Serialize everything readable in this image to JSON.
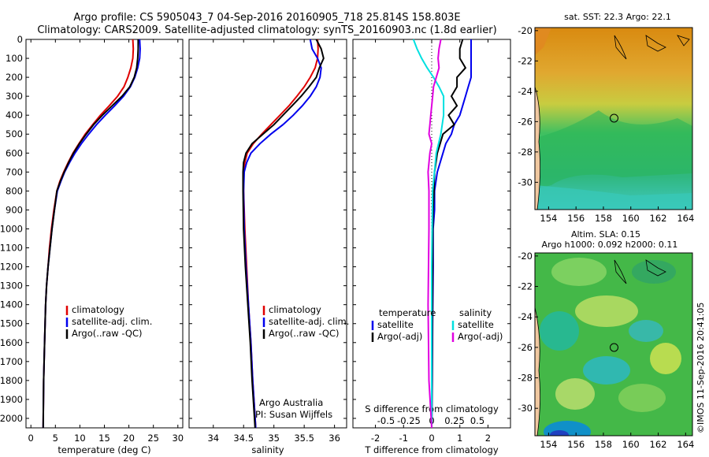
{
  "header": {
    "line1": "Argo profile: CS 5905043_7 04-Sep-2016 20160905_718 25.814S 158.803E",
    "line2": "Climatology: CARS2009. Satellite-adjusted climatology: synTS_20160903.nc (1.8d earlier)"
  },
  "side_label": "©IMOS 11-Sep-2016 20:41:05",
  "colors": {
    "climatology": "#e00000",
    "satellite": "#0000ee",
    "argo": "#000000",
    "sal_satellite": "#00e0e0",
    "sal_argo": "#e000e0"
  },
  "chart_data": [
    {
      "id": "temperature",
      "type": "line",
      "xlabel": "temperature (deg C)",
      "ylabel": "",
      "xlim": [
        -1,
        31
      ],
      "ylim": [
        2050,
        0
      ],
      "xticks": [
        0,
        5,
        10,
        15,
        20,
        25,
        30
      ],
      "yticks": [
        0,
        100,
        200,
        300,
        400,
        500,
        600,
        700,
        800,
        900,
        1000,
        1100,
        1200,
        1300,
        1400,
        1500,
        1600,
        1700,
        1800,
        1900,
        2000
      ],
      "legend": {
        "placement": "lower-center",
        "entries": [
          "climatology",
          "satellite-adj. clim.",
          "Argo(..raw -QC)"
        ]
      },
      "series": [
        {
          "name": "climatology",
          "color": "#e00000",
          "x": [
            20.8,
            20.9,
            20.8,
            20.4,
            19.8,
            19.0,
            17.7,
            16.0,
            14.2,
            12.6,
            11.1,
            9.8,
            8.6,
            7.6,
            6.7,
            5.9,
            5.3,
            4.7,
            4.2,
            3.8,
            3.5,
            3.2,
            3.0,
            2.8,
            2.6,
            2.5
          ],
          "y": [
            0,
            50,
            100,
            150,
            200,
            250,
            300,
            350,
            400,
            450,
            500,
            550,
            600,
            650,
            700,
            750,
            800,
            900,
            1000,
            1100,
            1200,
            1300,
            1400,
            1600,
            1800,
            2050
          ]
        },
        {
          "name": "satellite-adj. clim.",
          "color": "#0000ee",
          "x": [
            22.2,
            22.3,
            22.2,
            21.8,
            21.2,
            20.3,
            18.9,
            17.1,
            15.2,
            13.4,
            11.8,
            10.3,
            9.0,
            7.9,
            6.9,
            6.1,
            5.4,
            4.8,
            4.3,
            3.9,
            3.5,
            3.2,
            3.0,
            2.8,
            2.6,
            2.5
          ],
          "y": [
            0,
            50,
            100,
            150,
            200,
            250,
            300,
            350,
            400,
            450,
            500,
            550,
            600,
            650,
            700,
            750,
            800,
            900,
            1000,
            1100,
            1200,
            1300,
            1400,
            1600,
            1800,
            2050
          ]
        },
        {
          "name": "Argo(..raw -QC)",
          "color": "#000000",
          "x": [
            21.9,
            21.9,
            21.8,
            21.6,
            21.1,
            20.2,
            18.6,
            16.6,
            14.6,
            12.8,
            11.3,
            9.9,
            8.7,
            7.7,
            6.8,
            6.0,
            5.3,
            4.8,
            4.3,
            3.9,
            3.5,
            3.2,
            3.0,
            2.8,
            2.6,
            2.5
          ],
          "y": [
            0,
            50,
            100,
            150,
            200,
            250,
            300,
            350,
            400,
            450,
            500,
            550,
            600,
            650,
            700,
            750,
            800,
            900,
            1000,
            1100,
            1200,
            1300,
            1400,
            1600,
            1800,
            2050
          ]
        }
      ]
    },
    {
      "id": "salinity",
      "type": "line",
      "xlabel": "salinity",
      "ylabel": "",
      "xlim": [
        33.6,
        36.2
      ],
      "ylim": [
        2050,
        0
      ],
      "xticks": [
        34,
        34.5,
        35,
        35.5,
        36
      ],
      "xticklabels": [
        "34",
        "34.5",
        "35",
        "35.5",
        "36"
      ],
      "legend": {
        "placement": "lower-center",
        "entries": [
          "climatology",
          "satellite-adj. clim.",
          "Argo(..raw -QC)"
        ]
      },
      "annotation": [
        "Argo Australia",
        "PI: Susan Wijffels"
      ],
      "series": [
        {
          "name": "climatology",
          "color": "#e00000",
          "x": [
            35.72,
            35.73,
            35.72,
            35.68,
            35.6,
            35.5,
            35.38,
            35.25,
            35.1,
            34.95,
            34.8,
            34.66,
            34.56,
            34.52,
            34.5,
            34.5,
            34.52,
            34.55,
            34.58,
            34.62,
            34.65,
            34.68,
            34.7
          ],
          "y": [
            0,
            50,
            100,
            150,
            200,
            250,
            300,
            350,
            400,
            450,
            500,
            550,
            600,
            650,
            700,
            800,
            1000,
            1200,
            1400,
            1600,
            1800,
            1950,
            2050
          ]
        },
        {
          "name": "satellite-adj. clim.",
          "color": "#0000ee",
          "x": [
            35.6,
            35.63,
            35.72,
            35.78,
            35.76,
            35.7,
            35.6,
            35.47,
            35.32,
            35.15,
            34.95,
            34.77,
            34.62,
            34.55,
            34.51,
            34.5,
            34.51,
            34.54,
            34.58,
            34.62,
            34.65,
            34.68,
            34.7
          ],
          "y": [
            0,
            50,
            100,
            150,
            200,
            250,
            300,
            350,
            400,
            450,
            500,
            550,
            600,
            650,
            700,
            800,
            1000,
            1200,
            1400,
            1600,
            1800,
            1950,
            2050
          ]
        },
        {
          "name": "Argo(..raw -QC)",
          "color": "#000000",
          "x": [
            35.7,
            35.78,
            35.82,
            35.75,
            35.7,
            35.58,
            35.45,
            35.3,
            35.15,
            35.0,
            34.82,
            34.64,
            34.54,
            34.5,
            34.49,
            34.49,
            34.5,
            34.53,
            34.57,
            34.61,
            34.64,
            34.67,
            34.69
          ],
          "y": [
            0,
            50,
            100,
            150,
            200,
            250,
            300,
            350,
            400,
            450,
            500,
            550,
            600,
            650,
            700,
            800,
            1000,
            1200,
            1400,
            1600,
            1800,
            1950,
            2050
          ]
        }
      ]
    },
    {
      "id": "difference",
      "type": "line",
      "xlabel": "T difference from climatology",
      "xlabel_top": "S difference from climatology",
      "xlim": [
        -2.8,
        2.8
      ],
      "ylim": [
        2050,
        0
      ],
      "xticks": [
        -2,
        -1,
        0,
        1,
        2
      ],
      "xticks_s": [
        -0.5,
        -0.25,
        0,
        0.25,
        0.5
      ],
      "xticklabels_s": [
        "-0.5",
        "-0.25",
        "0",
        "0.25",
        "0.5"
      ],
      "legend": {
        "placement": "lower",
        "temperature_title": "temperature",
        "salinity_title": "salinity",
        "entries": [
          "satellite",
          "Argo(-adj)",
          "satellite",
          "Argo(-adj)"
        ]
      },
      "series": [
        {
          "name": "satellite",
          "group": "temperature",
          "color": "#0000ee",
          "x": [
            1.4,
            1.4,
            1.4,
            1.4,
            1.4,
            1.3,
            1.2,
            1.1,
            1.0,
            0.8,
            0.7,
            0.5,
            0.4,
            0.3,
            0.2,
            0.1,
            0.1,
            0.05,
            0.05,
            0.03,
            0.02,
            0.0
          ],
          "y": [
            0,
            50,
            100,
            150,
            200,
            250,
            300,
            350,
            400,
            450,
            500,
            550,
            600,
            650,
            700,
            800,
            900,
            1000,
            1200,
            1500,
            1800,
            2050
          ]
        },
        {
          "name": "Argo(-adj)",
          "group": "temperature",
          "color": "#000000",
          "x": [
            1.1,
            1.0,
            1.0,
            1.2,
            0.9,
            0.9,
            0.7,
            0.9,
            0.6,
            0.8,
            0.4,
            0.3,
            0.2,
            0.15,
            0.1,
            0.08,
            0.05,
            0.04,
            0.03,
            0.02,
            0.01,
            0.0
          ],
          "y": [
            0,
            50,
            100,
            150,
            200,
            250,
            300,
            350,
            400,
            450,
            500,
            550,
            600,
            650,
            700,
            800,
            900,
            1000,
            1200,
            1500,
            1800,
            2050
          ]
        },
        {
          "name": "satellite",
          "group": "salinity",
          "color": "#00e0e0",
          "x": [
            -0.2,
            -0.16,
            -0.11,
            -0.05,
            0.02,
            0.08,
            0.13,
            0.13,
            0.1,
            0.05,
            0.03,
            0.01,
            0.0,
            0.0
          ],
          "y": [
            0,
            50,
            100,
            150,
            200,
            250,
            300,
            400,
            500,
            600,
            700,
            800,
            1200,
            2050
          ]
        },
        {
          "name": "Argo(-adj)",
          "group": "salinity",
          "color": "#e000e0",
          "x": [
            0.1,
            0.08,
            0.07,
            0.08,
            0.05,
            0.02,
            0.01,
            0.0,
            -0.01,
            -0.02,
            -0.03,
            0.0,
            -0.02,
            -0.04,
            -0.03,
            -0.03,
            -0.04,
            -0.03,
            0.0
          ],
          "y": [
            0,
            50,
            100,
            150,
            200,
            250,
            300,
            350,
            400,
            450,
            500,
            550,
            600,
            700,
            800,
            1000,
            1400,
            1800,
            2050
          ]
        }
      ]
    },
    {
      "id": "sst-map",
      "type": "heatmap",
      "title": "sat. SST: 22.3  Argo: 22.1",
      "xlim": [
        153,
        164.5
      ],
      "ylim": [
        -31.8,
        -19.8
      ],
      "xticks": [
        154,
        156,
        158,
        160,
        162,
        164
      ],
      "yticks": [
        -20,
        -22,
        -24,
        -26,
        -28,
        -30
      ],
      "marker": {
        "lon": 158.8,
        "lat": -25.8
      }
    },
    {
      "id": "sla-map",
      "type": "heatmap",
      "title": "Altim. SLA: 0.15",
      "subtitle": "Argo h1000: 0.092  h2000: 0.11",
      "xlim": [
        153,
        164.5
      ],
      "ylim": [
        -31.8,
        -19.8
      ],
      "xticks": [
        154,
        156,
        158,
        160,
        162,
        164
      ],
      "yticks": [
        -20,
        -22,
        -24,
        -26,
        -28,
        -30
      ],
      "marker": {
        "lon": 158.8,
        "lat": -25.8
      }
    }
  ]
}
